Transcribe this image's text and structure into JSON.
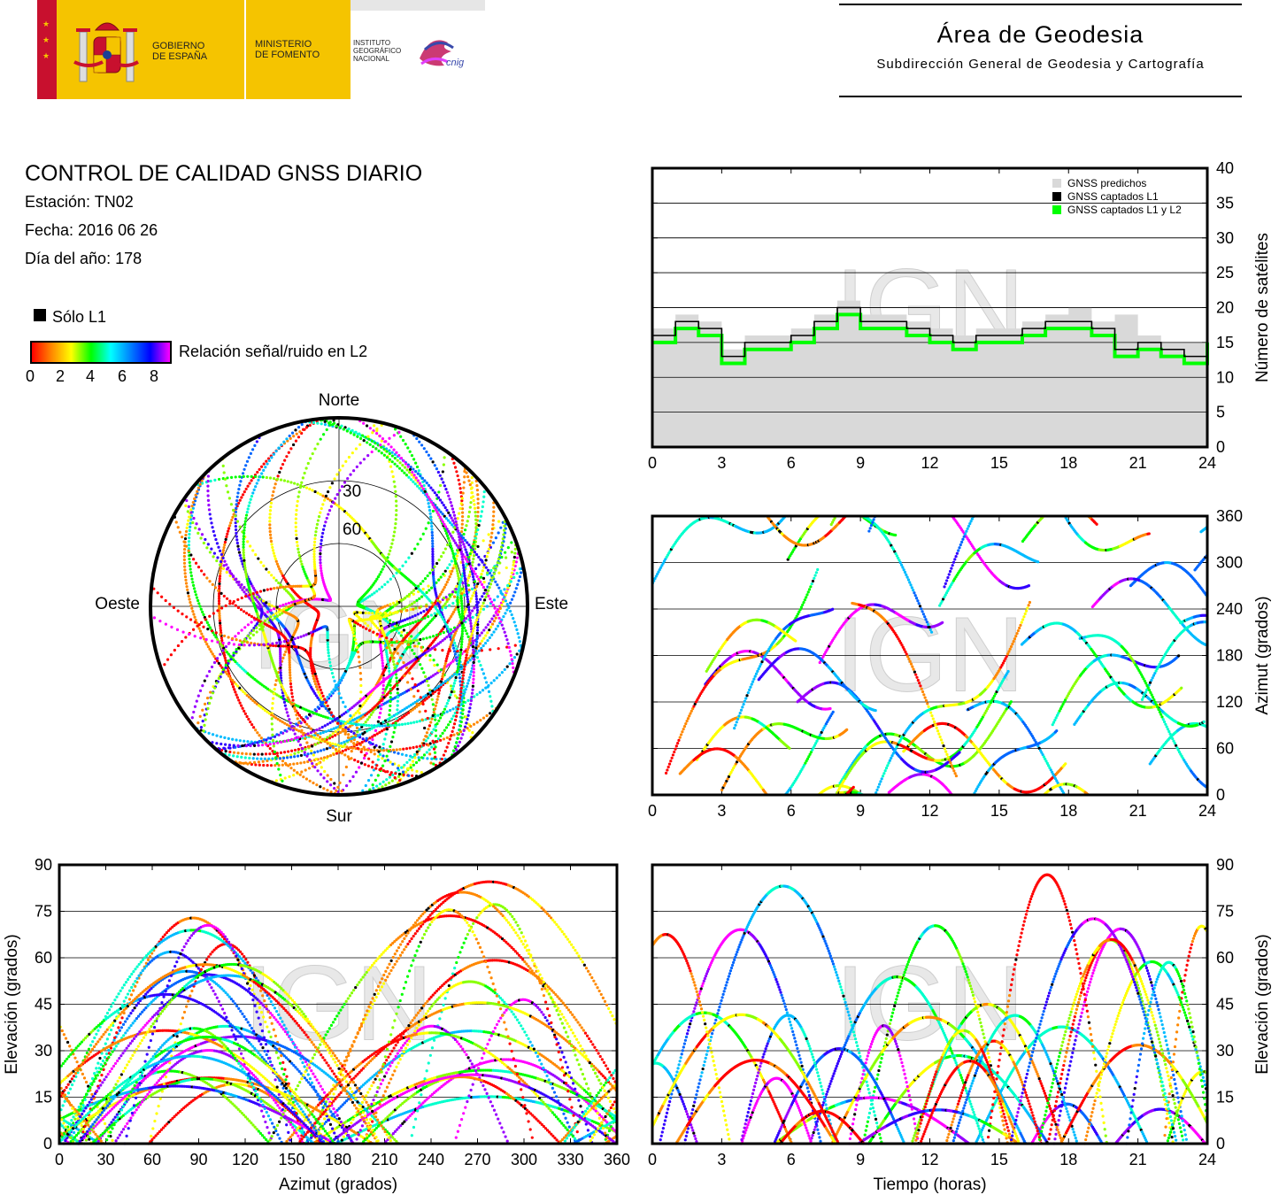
{
  "header": {
    "gobierno": [
      "GOBIERNO",
      "DE ESPAÑA"
    ],
    "ministerio": [
      "MINISTERIO",
      "DE FOMENTO"
    ],
    "instituto": [
      "INSTITUTO",
      "GEOGRÁFICO",
      "NACIONAL"
    ],
    "cnig": "cnig",
    "area_title": "Área de Geodesia",
    "area_subtitle": "Subdirección General de Geodesia y Cartografía"
  },
  "info": {
    "title": "CONTROL DE CALIDAD GNSS DIARIO",
    "station": "Estación: TN02",
    "date": "Fecha: 2016 06 26",
    "doy": "Día del año: 178"
  },
  "legend": {
    "solo_l1": "Sólo L1",
    "snr_label": "Relación señal/ruido en L2",
    "snr_ticks": [
      "0",
      "2",
      "4",
      "6",
      "8"
    ],
    "colors": {
      "l1_only": "#000000",
      "predicted": "#d9d9d9",
      "captured_l1l2": "#00ff00",
      "snr_gradient": [
        "#ff0000",
        "#ffff00",
        "#00ff00",
        "#00ffff",
        "#0000ff",
        "#ff00ff"
      ]
    }
  },
  "watermark": "IGN",
  "chart_data": [
    {
      "type": "area",
      "id": "satellite-count",
      "ylabel": "Número de satélites",
      "xlim": [
        0,
        24
      ],
      "ylim": [
        0,
        40
      ],
      "xticks": [
        "0",
        "3",
        "6",
        "9",
        "12",
        "15",
        "18",
        "21",
        "24"
      ],
      "yticks": [
        "0",
        "5",
        "10",
        "15",
        "20",
        "25",
        "30",
        "35",
        "40"
      ],
      "grid": true,
      "legend_position": "top-right",
      "series": [
        {
          "name": "GNSS predichos",
          "x": [
            0,
            1,
            2,
            3,
            4,
            5,
            6,
            7,
            8,
            9,
            10,
            11,
            12,
            13,
            14,
            15,
            16,
            17,
            18,
            19,
            20,
            21,
            22,
            23,
            24
          ],
          "values": [
            17,
            19,
            18,
            14,
            16,
            16,
            17,
            19,
            21,
            19,
            19,
            18,
            17,
            16,
            17,
            17,
            18,
            19,
            20,
            18,
            19,
            16,
            15,
            15,
            17
          ]
        },
        {
          "name": "GNSS captados L1",
          "x": [
            0,
            1,
            2,
            3,
            4,
            5,
            6,
            7,
            8,
            9,
            10,
            11,
            12,
            13,
            14,
            15,
            16,
            17,
            18,
            19,
            20,
            21,
            22,
            23,
            24
          ],
          "values": [
            16,
            18,
            17,
            13,
            15,
            15,
            16,
            18,
            20,
            18,
            18,
            17,
            16,
            15,
            16,
            16,
            17,
            18,
            18,
            17,
            14,
            15,
            14,
            13,
            16
          ]
        },
        {
          "name": "GNSS captados L1 y L2",
          "x": [
            0,
            1,
            2,
            3,
            4,
            5,
            6,
            7,
            8,
            9,
            10,
            11,
            12,
            13,
            14,
            15,
            16,
            17,
            18,
            19,
            20,
            21,
            22,
            23,
            24
          ],
          "values": [
            15,
            17,
            16,
            12,
            14,
            14,
            15,
            17,
            19,
            17,
            17,
            16,
            15,
            14,
            15,
            15,
            16,
            17,
            17,
            16,
            13,
            14,
            13,
            12,
            15
          ]
        }
      ]
    },
    {
      "type": "scatter",
      "id": "azimuth-time",
      "ylabel": "Azimut (grados)",
      "xlim": [
        0,
        24
      ],
      "ylim": [
        0,
        360
      ],
      "xticks": [
        "0",
        "3",
        "6",
        "9",
        "12",
        "15",
        "18",
        "21",
        "24"
      ],
      "yticks": [
        "0",
        "60",
        "120",
        "180",
        "240",
        "300",
        "360"
      ],
      "grid": true
    },
    {
      "type": "scatter",
      "id": "elevation-azimuth",
      "xlabel": "Azimut (grados)",
      "ylabel": "Elevación (grados)",
      "xlim": [
        0,
        360
      ],
      "ylim": [
        0,
        90
      ],
      "xticks": [
        "0",
        "30",
        "60",
        "90",
        "120",
        "150",
        "180",
        "210",
        "240",
        "270",
        "300",
        "330",
        "360"
      ],
      "yticks": [
        "0",
        "15",
        "30",
        "45",
        "60",
        "75",
        "90"
      ],
      "grid": true
    },
    {
      "type": "scatter",
      "id": "elevation-time",
      "xlabel": "Tiempo (horas)",
      "ylabel": "Elevación (grados)",
      "xlim": [
        0,
        24
      ],
      "ylim": [
        0,
        90
      ],
      "xticks": [
        "0",
        "3",
        "6",
        "9",
        "12",
        "15",
        "18",
        "21",
        "24"
      ],
      "yticks": [
        "0",
        "15",
        "30",
        "45",
        "60",
        "75",
        "90"
      ],
      "grid": true
    },
    {
      "type": "scatter",
      "id": "skyplot",
      "cardinals": {
        "north": "Norte",
        "south": "Sur",
        "east": "Este",
        "west": "Oeste"
      },
      "rings": [
        "30",
        "60"
      ]
    }
  ]
}
